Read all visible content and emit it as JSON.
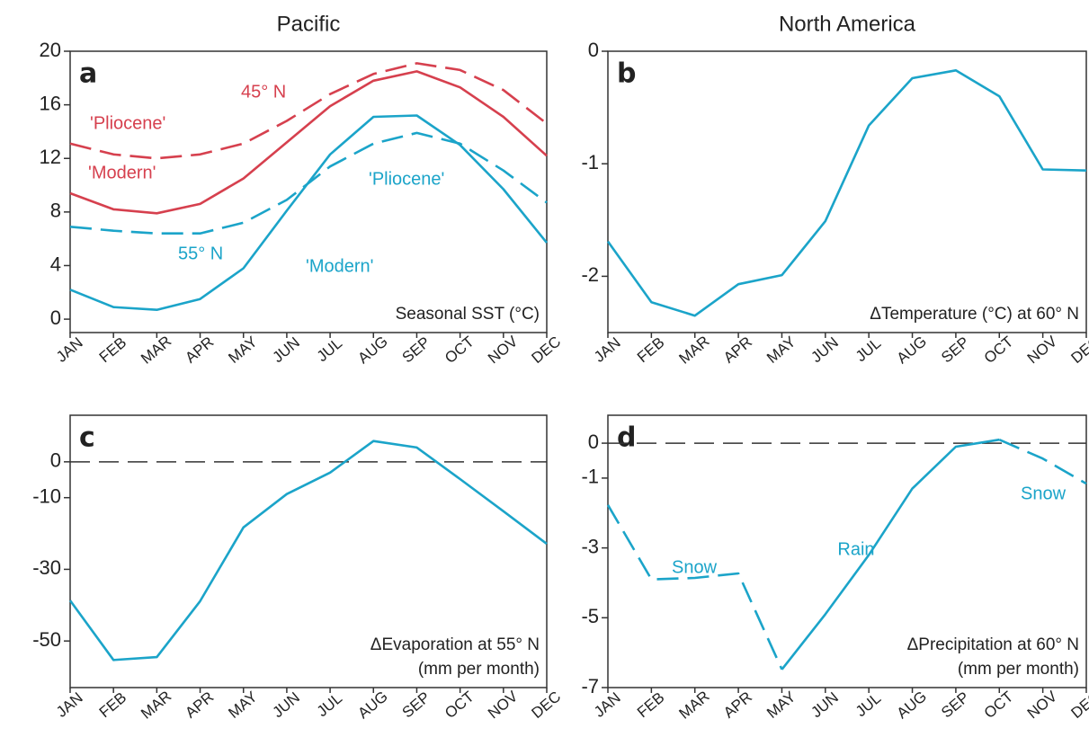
{
  "chart_data": [
    {
      "type": "line",
      "title": "Pacific",
      "panel": "a",
      "notes": [
        "Seasonal SST (°C)"
      ],
      "categories": [
        "JAN",
        "FEB",
        "MAR",
        "APR",
        "MAY",
        "JUN",
        "JUL",
        "AUG",
        "SEP",
        "OCT",
        "NOV",
        "DEC"
      ],
      "ylim": [
        -1,
        20
      ],
      "yticks": [
        0,
        4,
        8,
        12,
        16,
        20
      ],
      "series": [
        {
          "name": "'Pliocene'",
          "color": "#d6404e",
          "style": "dashed",
          "values": [
            13.1,
            12.3,
            12.0,
            12.3,
            13.1,
            14.8,
            16.8,
            18.3,
            19.1,
            18.6,
            17.1,
            14.6
          ]
        },
        {
          "name": "'Modern'",
          "color": "#d6404e",
          "style": "solid",
          "values": [
            9.4,
            8.2,
            7.9,
            8.6,
            10.5,
            13.2,
            15.9,
            17.8,
            18.5,
            17.3,
            15.1,
            12.2
          ]
        },
        {
          "name": "'Pliocene'",
          "color": "#1ba4c9",
          "style": "dashed",
          "values": [
            6.9,
            6.6,
            6.4,
            6.4,
            7.2,
            8.9,
            11.4,
            13.1,
            13.9,
            13.1,
            11.1,
            8.7
          ]
        },
        {
          "name": "'Modern'",
          "color": "#1ba4c9",
          "style": "solid",
          "values": [
            2.2,
            0.9,
            0.7,
            1.5,
            3.8,
            8.1,
            12.3,
            15.1,
            15.2,
            13.0,
            9.7,
            5.7
          ]
        }
      ],
      "annotations": [
        "45° N",
        "55° N"
      ]
    },
    {
      "type": "line",
      "title": "North America",
      "panel": "b",
      "notes": [
        "ΔTemperature (°C) at 60° N"
      ],
      "categories": [
        "JAN",
        "FEB",
        "MAR",
        "APR",
        "MAY",
        "JUN",
        "JUL",
        "AUG",
        "SEP",
        "OCT",
        "NOV",
        "DEC"
      ],
      "ylim": [
        -2.5,
        0
      ],
      "yticks": [
        -2,
        -1,
        0
      ],
      "series": [
        {
          "color": "#1ba4c9",
          "style": "solid",
          "values": [
            -1.69,
            -2.23,
            -2.35,
            -2.07,
            -1.99,
            -1.51,
            -0.66,
            -0.24,
            -0.17,
            -0.4,
            -1.05,
            -1.06
          ]
        }
      ]
    },
    {
      "type": "line",
      "panel": "c",
      "notes": [
        "ΔEvaporation at 55° N",
        "(mm per month)"
      ],
      "categories": [
        "JAN",
        "FEB",
        "MAR",
        "APR",
        "MAY",
        "JUN",
        "JUL",
        "AUG",
        "SEP",
        "OCT",
        "NOV",
        "DEC"
      ],
      "ylim": [
        -63,
        13
      ],
      "yticks": [
        -50,
        -30,
        -10,
        0
      ],
      "hline": 0,
      "series": [
        {
          "color": "#1ba4c9",
          "style": "solid",
          "values": [
            -38.7,
            -55.3,
            -54.5,
            -38.9,
            -18.3,
            -9.0,
            -3.0,
            5.8,
            4.0,
            -4.8,
            -13.8,
            -22.9
          ]
        }
      ]
    },
    {
      "type": "line",
      "panel": "d",
      "notes": [
        "ΔPrecipitation at 60° N",
        "(mm per month)"
      ],
      "categories": [
        "JAN",
        "FEB",
        "MAR",
        "APR",
        "MAY",
        "JUN",
        "JUL",
        "AUG",
        "SEP",
        "OCT",
        "NOV",
        "DEC"
      ],
      "ylim": [
        -7,
        0.8
      ],
      "yticks": [
        -7,
        -5,
        -3,
        -1,
        0
      ],
      "hline": 0,
      "series": [
        {
          "name": "Rain",
          "color": "#1ba4c9",
          "style": "solid",
          "values": [
            null,
            null,
            null,
            null,
            -6.48,
            -4.9,
            -3.2,
            -1.3,
            -0.1,
            0.1,
            null,
            null
          ]
        },
        {
          "name": "Snow",
          "color": "#1ba4c9",
          "style": "dashed",
          "values": [
            -1.77,
            -3.9,
            -3.86,
            -3.73,
            -6.48,
            null,
            null,
            null,
            null,
            0.1,
            -0.44,
            -1.16
          ]
        }
      ],
      "annotations": [
        "Snow"
      ]
    }
  ]
}
